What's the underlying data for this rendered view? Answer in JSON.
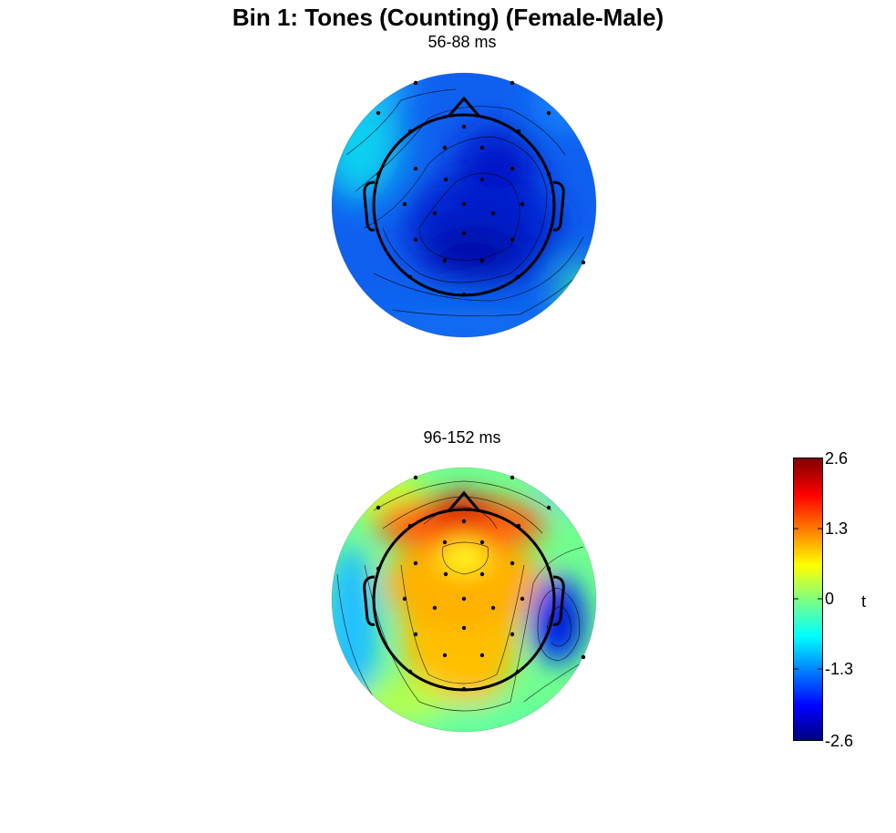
{
  "title": "Bin 1: Tones (Counting) (Female-Male)",
  "maps": [
    {
      "label": "56-88 ms"
    },
    {
      "label": "96-152 ms"
    }
  ],
  "colorbar": {
    "ticks": [
      "2.6",
      "1.3",
      "0",
      "-1.3",
      "-2.6"
    ],
    "unit": "t",
    "colors": [
      "#000080",
      "#0000ff",
      "#00ffff",
      "#ffff00",
      "#ff0000",
      "#800000"
    ]
  }
}
